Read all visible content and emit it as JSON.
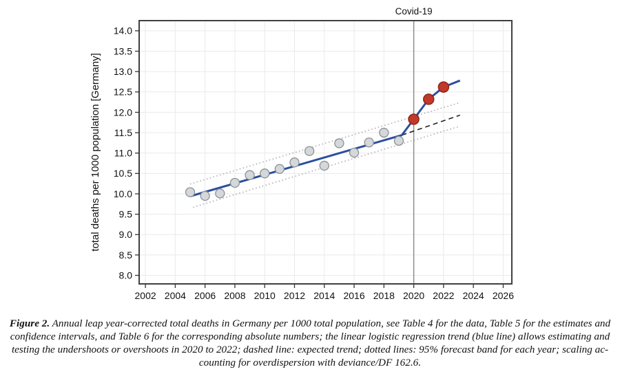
{
  "caption": {
    "lines": [
      {
        "bold": "Figure 2.",
        "text": " Annual leap year-corrected total deaths in Germany per 1000 total population, see Table 4 for the data, Table 5 for the estimates and"
      },
      {
        "bold": "",
        "text": "confidence intervals, and Table 6 for the corresponding absolute numbers; the linear logistic regression trend (blue line) allows estimating and"
      },
      {
        "bold": "",
        "text": "testing the undershoots or overshoots in 2020 to 2022; dashed line: expected trend; dotted lines: 95% forecast band for each year; scaling ac-"
      },
      {
        "bold": "",
        "text": "counting for overdispersion with deviance/DF 162.6."
      }
    ]
  },
  "chart_data": {
    "type": "scatter",
    "title": "",
    "xlabel": "",
    "ylabel": "total deaths per 1000 population [Germany]",
    "xlim": [
      2001.58,
      2026.58
    ],
    "ylim": [
      7.79,
      14.25
    ],
    "x_ticks": [
      2002,
      2004,
      2006,
      2008,
      2010,
      2012,
      2014,
      2016,
      2018,
      2020,
      2022,
      2024,
      2026
    ],
    "y_ticks": [
      8.0,
      8.5,
      9.0,
      9.5,
      10.0,
      10.5,
      11.0,
      11.5,
      12.0,
      12.5,
      13.0,
      13.5,
      14.0
    ],
    "grid": true,
    "legend_position": "none",
    "annotation": {
      "label": "Covid-19",
      "x": 2020
    },
    "points": [
      {
        "year": 2005,
        "value": 10.04,
        "group": "pre"
      },
      {
        "year": 2006,
        "value": 9.95,
        "group": "pre"
      },
      {
        "year": 2007,
        "value": 10.01,
        "group": "pre"
      },
      {
        "year": 2008,
        "value": 10.27,
        "group": "pre"
      },
      {
        "year": 2009,
        "value": 10.46,
        "group": "pre"
      },
      {
        "year": 2010,
        "value": 10.5,
        "group": "pre"
      },
      {
        "year": 2011,
        "value": 10.61,
        "group": "pre"
      },
      {
        "year": 2012,
        "value": 10.77,
        "group": "pre"
      },
      {
        "year": 2013,
        "value": 11.05,
        "group": "pre"
      },
      {
        "year": 2014,
        "value": 10.69,
        "group": "pre"
      },
      {
        "year": 2015,
        "value": 11.24,
        "group": "pre"
      },
      {
        "year": 2016,
        "value": 11.01,
        "group": "pre"
      },
      {
        "year": 2017,
        "value": 11.26,
        "group": "pre"
      },
      {
        "year": 2018,
        "value": 11.5,
        "group": "pre"
      },
      {
        "year": 2019,
        "value": 11.3,
        "group": "pre"
      },
      {
        "year": 2020,
        "value": 11.83,
        "group": "covid"
      },
      {
        "year": 2021,
        "value": 12.32,
        "group": "covid"
      },
      {
        "year": 2022,
        "value": 12.62,
        "group": "covid"
      }
    ],
    "trend_line": [
      [
        2005.0,
        9.94
      ],
      [
        2019.2,
        11.44
      ],
      [
        2020,
        11.83
      ],
      [
        2021,
        12.32
      ],
      [
        2022,
        12.62
      ],
      [
        2023.1,
        12.78
      ]
    ],
    "dashed_expected_trend": [
      [
        2019.2,
        11.44
      ],
      [
        2023.1,
        11.93
      ]
    ],
    "dotted_forecast_upper": [
      [
        2005.0,
        10.24
      ],
      [
        2023.1,
        12.24
      ]
    ],
    "dotted_forecast_lower": [
      [
        2005.2,
        9.67
      ],
      [
        2023.1,
        11.66
      ]
    ],
    "colors": {
      "trend_line": "#2b4f9e",
      "covid_points_fill": "#c0392b",
      "covid_points_stroke": "#8e2517",
      "pre_points_fill": "#d4d8da",
      "pre_points_stroke": "#8b9196",
      "forecast_band": "#999999",
      "dashed_trend": "#222222",
      "covid_vline": "#8c8c8c",
      "grid": "#eaeaea",
      "plot_border": "#3f3f3f"
    }
  }
}
